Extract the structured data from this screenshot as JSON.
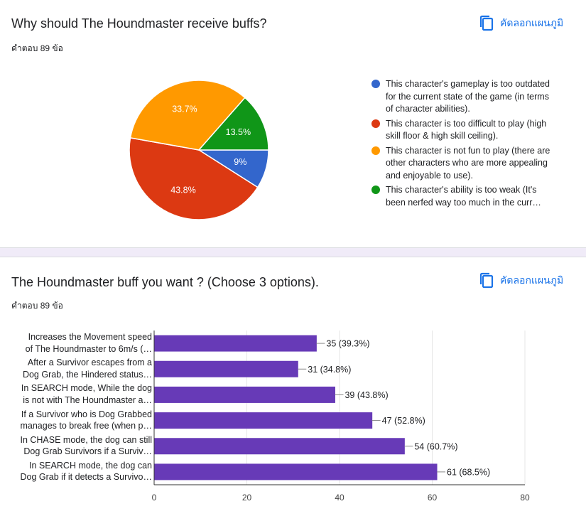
{
  "q1": {
    "title": "Why should The Houndmaster receive buffs?",
    "count": "คำตอบ 89 ข้อ",
    "copy_label": "คัดลอกแผนภูมิ"
  },
  "q2": {
    "title": "The Houndmaster buff you want ? (Choose 3 options).",
    "count": "คำตอบ 89 ข้อ",
    "copy_label": "คัดลอกแผนภูมิ"
  },
  "chart_data": [
    {
      "type": "pie",
      "title": "Why should The Houndmaster receive buffs?",
      "slices": [
        {
          "label": "This character's gameplay is too outdated for the current state of the game (in terms of character abilities).",
          "value": 9,
          "pct_label": "9%",
          "color": "#3366cc"
        },
        {
          "label": "This character is too difficult to play (high skill floor & high skill ceiling).",
          "value": 43.8,
          "pct_label": "43.8%",
          "color": "#dc3912"
        },
        {
          "label": "This character is not fun to play (there are other characters who are more appealing and enjoyable to use).",
          "value": 33.7,
          "pct_label": "33.7%",
          "color": "#ff9900"
        },
        {
          "label": "This character's ability is too weak (It's been nerfed way too much in the curr…",
          "value": 13.5,
          "pct_label": "13.5%",
          "color": "#109618"
        }
      ],
      "legend_placement": "right"
    },
    {
      "type": "bar",
      "orientation": "horizontal",
      "title": "The Houndmaster buff you want ? (Choose 3 options).",
      "categories": [
        [
          "Increases the Movement speed",
          "of The Houndmaster to 6m/s (…"
        ],
        [
          "After a Survivor escapes from a",
          "Dog Grab, the Hindered status…"
        ],
        [
          "In SEARCH mode, While the dog",
          "is not with The Houndmaster a…"
        ],
        [
          "If a Survivor who is Dog Grabbed",
          "manages to break free (when p…"
        ],
        [
          "In CHASE mode, the dog can still",
          "Dog Grab Survivors if a Surviv…"
        ],
        [
          "In SEARCH mode, the dog can",
          "Dog Grab if it detects a Survivo…"
        ]
      ],
      "values": [
        35,
        31,
        39,
        47,
        54,
        61
      ],
      "data_labels": [
        "35 (39.3%)",
        "31 (34.8%)",
        "39 (43.8%)",
        "47 (52.8%)",
        "54 (60.7%)",
        "61 (68.5%)"
      ],
      "xlim": [
        0,
        80
      ],
      "ticks": [
        0,
        20,
        40,
        60,
        80
      ],
      "tick_labels": [
        "0",
        "20",
        "40",
        "60",
        "80"
      ],
      "bar_color": "#673ab7",
      "grid": true
    }
  ]
}
